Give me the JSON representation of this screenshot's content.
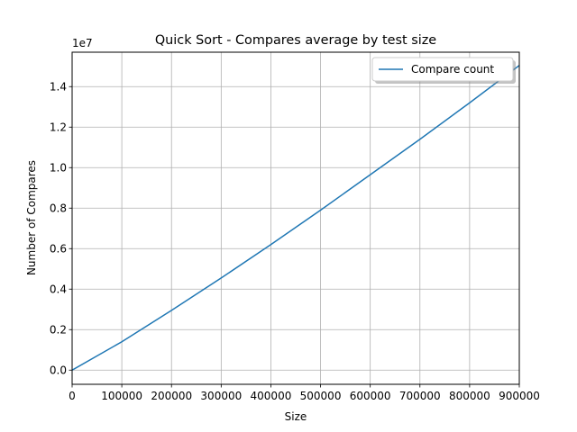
{
  "chart_data": {
    "type": "line",
    "title": "Quick Sort - Compares average by test size",
    "xlabel": "Size",
    "ylabel": "Number of Compares",
    "y_offset_label": "1e7",
    "y_scale": 10000000,
    "xlim": [
      0,
      900000
    ],
    "ylim": [
      -700000,
      15700000
    ],
    "x_ticks": [
      0,
      100000,
      200000,
      300000,
      400000,
      500000,
      600000,
      700000,
      800000,
      900000
    ],
    "x_tick_labels": [
      "0",
      "100000",
      "200000",
      "300000",
      "400000",
      "500000",
      "600000",
      "700000",
      "800000",
      "900000"
    ],
    "y_ticks": [
      0,
      2000000,
      4000000,
      6000000,
      8000000,
      10000000,
      12000000,
      14000000
    ],
    "y_tick_labels": [
      "0.0",
      "0.2",
      "0.4",
      "0.6",
      "0.8",
      "1.0",
      "1.2",
      "1.4"
    ],
    "grid": true,
    "legend_position": "top-right",
    "series": [
      {
        "name": "Compare count",
        "color": "#1f77b4",
        "x": [
          0,
          100000,
          200000,
          300000,
          400000,
          500000,
          600000,
          700000,
          800000,
          900000
        ],
        "y": [
          0,
          1400000,
          2950000,
          4550000,
          6200000,
          7900000,
          9650000,
          11400000,
          13200000,
          15050000
        ]
      }
    ]
  }
}
